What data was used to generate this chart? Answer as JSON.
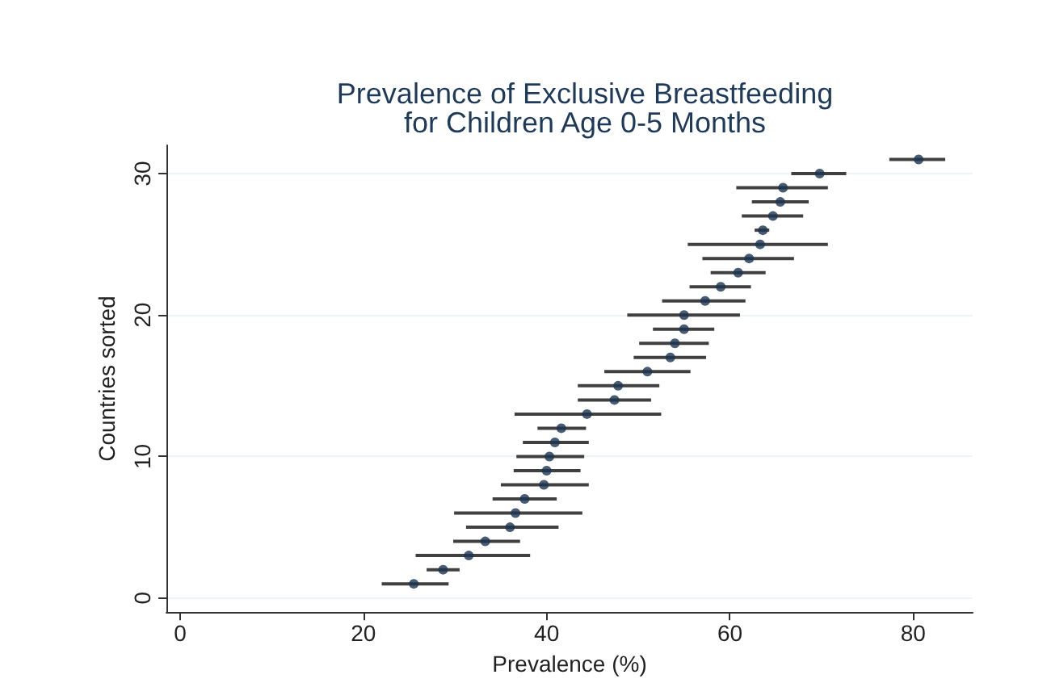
{
  "chart_data": {
    "type": "scatter",
    "title": "Prevalence of Exclusive Breastfeeding\nfor Children Age 0-5 Months",
    "xlabel": "Prevalence (%)",
    "ylabel": "Countries sorted",
    "x": [
      25.5,
      28.7,
      31.5,
      33.3,
      36.0,
      36.6,
      37.6,
      39.7,
      40.0,
      40.3,
      40.9,
      41.6,
      44.4,
      47.4,
      47.8,
      51.0,
      53.5,
      54.0,
      55.0,
      55.0,
      57.3,
      59.0,
      60.9,
      62.1,
      63.3,
      63.6,
      64.7,
      65.5,
      65.8,
      69.8,
      80.6
    ],
    "values": [
      1,
      2,
      3,
      4,
      5,
      6,
      7,
      8,
      9,
      10,
      11,
      12,
      13,
      14,
      15,
      16,
      17,
      18,
      19,
      20,
      21,
      22,
      23,
      24,
      25,
      26,
      27,
      28,
      29,
      30,
      31
    ],
    "xerrors": [
      [
        22.0,
        29.3
      ],
      [
        26.9,
        30.5
      ],
      [
        25.7,
        38.2
      ],
      [
        29.8,
        37.1
      ],
      [
        31.2,
        41.3
      ],
      [
        29.9,
        43.9
      ],
      [
        34.1,
        41.1
      ],
      [
        35.0,
        44.6
      ],
      [
        36.4,
        43.7
      ],
      [
        36.7,
        44.1
      ],
      [
        37.4,
        44.6
      ],
      [
        39.0,
        44.3
      ],
      [
        36.5,
        52.5
      ],
      [
        43.4,
        51.4
      ],
      [
        43.4,
        52.3
      ],
      [
        46.3,
        55.7
      ],
      [
        49.5,
        57.4
      ],
      [
        50.1,
        57.7
      ],
      [
        51.6,
        58.3
      ],
      [
        48.8,
        61.1
      ],
      [
        52.6,
        61.7
      ],
      [
        55.6,
        62.3
      ],
      [
        57.9,
        63.9
      ],
      [
        57.0,
        67.0
      ],
      [
        55.4,
        70.7
      ],
      [
        62.7,
        64.3
      ],
      [
        61.3,
        68.0
      ],
      [
        62.4,
        68.6
      ],
      [
        60.7,
        70.7
      ],
      [
        66.7,
        72.7
      ],
      [
        77.4,
        83.5
      ]
    ],
    "color": "#1a3350",
    "xlim": [
      -1.5,
      86.5
    ],
    "xticks": [
      0,
      20,
      40,
      60,
      80
    ],
    "ylim": [
      -1,
      32
    ],
    "yticks": [
      0,
      10,
      20,
      30
    ],
    "grid": "y",
    "marker": "circle"
  }
}
